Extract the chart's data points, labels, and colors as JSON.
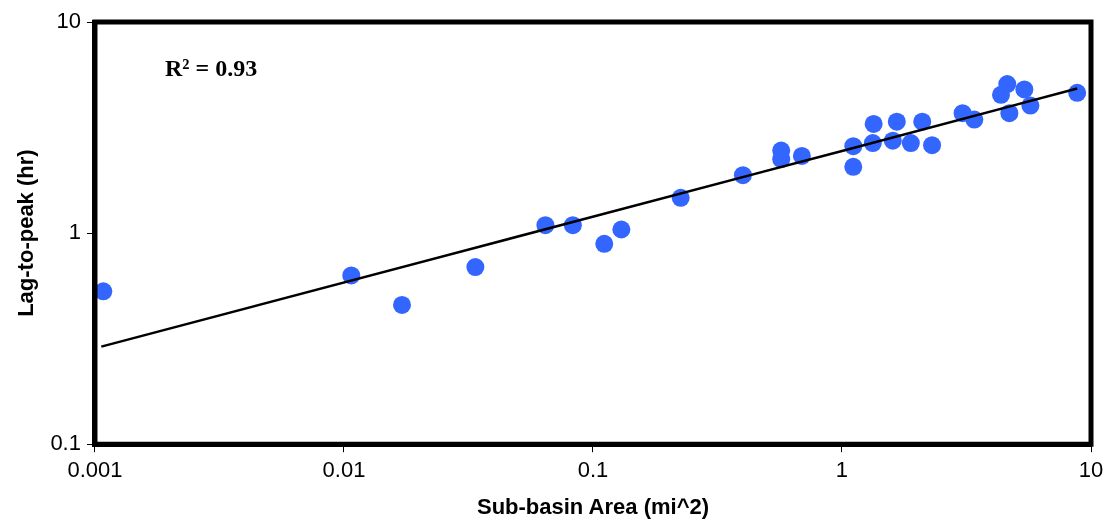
{
  "chart_data": {
    "type": "scatter",
    "xlabel": "Sub-basin Area (mi^2)",
    "ylabel": "Lag-to-peak (hr)",
    "log": "xy",
    "xlim": [
      0.001,
      10
    ],
    "xticks": [
      0.001,
      0.01,
      0.1,
      1,
      10
    ],
    "ylim": [
      0.1,
      10
    ],
    "yticks": [
      0.1,
      1,
      10
    ],
    "grid": false,
    "legend": false,
    "marker": "circle",
    "annotations": [
      "R² = 0.93"
    ],
    "series": [
      {
        "color": "#3366ff",
        "x": [
          0.00108,
          0.0107,
          0.0171,
          0.0337,
          0.0644,
          0.083,
          0.111,
          0.13,
          0.225,
          0.4,
          0.57,
          0.69,
          0.57,
          1.11,
          1.11,
          1.34,
          1.33,
          1.66,
          1.6,
          2.1,
          1.89,
          2.3,
          3.05,
          3.4,
          4.61,
          4.35,
          5.4,
          4.7,
          5.71,
          8.8
        ],
        "values": [
          0.53,
          0.63,
          0.457,
          0.69,
          1.09,
          1.09,
          0.89,
          1.04,
          1.47,
          1.88,
          2.46,
          2.32,
          2.24,
          2.58,
          2.06,
          3.29,
          2.67,
          3.37,
          2.74,
          3.37,
          2.67,
          2.61,
          3.7,
          3.45,
          5.08,
          4.52,
          4.79,
          3.7,
          4.02,
          4.62
        ]
      },
      {
        "type": "line",
        "color": "#000000",
        "marker": "none",
        "x": [
          0.00106,
          1,
          8.8
        ],
        "values": [
          0.29,
          2.45,
          4.84
        ]
      }
    ]
  }
}
